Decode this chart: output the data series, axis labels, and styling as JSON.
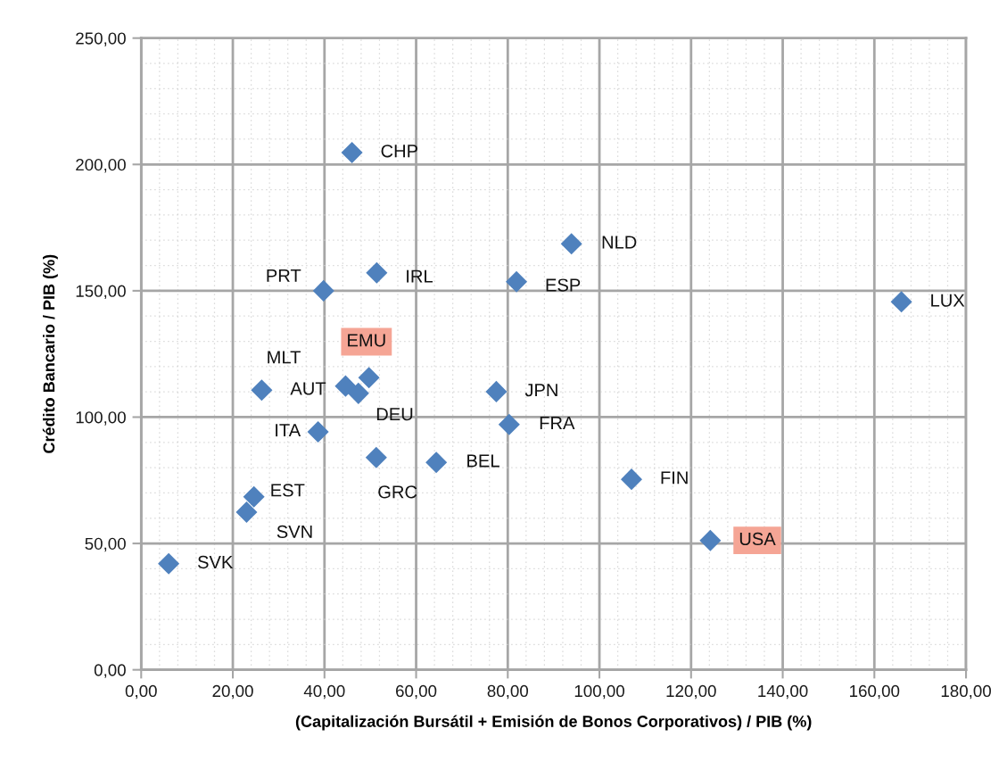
{
  "chart_data": {
    "type": "scatter",
    "xlabel": "(Capitalización Bursátil + Emisión de Bonos Corporativos) / PIB (%)",
    "ylabel": "Crédito Bancario / PIB (%)",
    "series": [
      {
        "color": "#4f81bd",
        "x": [
          46.0,
          93.9,
          51.4,
          81.9,
          39.8,
          165.9,
          49.7,
          44.6,
          26.3,
          77.5,
          47.4,
          80.3,
          38.6,
          51.3,
          64.4,
          107.0,
          24.6,
          23.0,
          124.2,
          6.0
        ],
        "values": [
          204.7,
          168.6,
          157.1,
          153.6,
          150.0,
          145.6,
          115.6,
          112.3,
          110.7,
          110.1,
          109.4,
          97.1,
          94.2,
          84.0,
          82.1,
          75.4,
          68.5,
          62.4,
          51.2,
          42.0
        ]
      }
    ],
    "marker": "diamond",
    "xlim": [
      0,
      180
    ],
    "ylim": [
      0,
      250
    ],
    "xticks": [
      {
        "value": 0,
        "label": "0,00"
      },
      {
        "value": 20,
        "label": "20,00"
      },
      {
        "value": 40,
        "label": "40,00"
      },
      {
        "value": 60,
        "label": "60,00"
      },
      {
        "value": 80,
        "label": "80,00"
      },
      {
        "value": 100,
        "label": "100,00"
      },
      {
        "value": 120,
        "label": "120,00"
      },
      {
        "value": 140,
        "label": "140,00"
      },
      {
        "value": 160,
        "label": "160,00"
      },
      {
        "value": 180,
        "label": "180,00"
      }
    ],
    "yticks": [
      {
        "value": 0,
        "label": "0,00"
      },
      {
        "value": 50,
        "label": "50,00"
      },
      {
        "value": 100,
        "label": "100,00"
      },
      {
        "value": 150,
        "label": "150,00"
      },
      {
        "value": 200,
        "label": "200,00"
      },
      {
        "value": 250,
        "label": "250,00"
      }
    ],
    "grid": true,
    "annotations": [
      {
        "text": "CHP",
        "x": 46.0,
        "y": 204.7
      },
      {
        "text": "NLD",
        "x": 93.9,
        "y": 168.6
      },
      {
        "text": "IRL",
        "x": 51.4,
        "y": 157.1
      },
      {
        "text": "ESP",
        "x": 81.9,
        "y": 153.6
      },
      {
        "text": "PRT",
        "x": 39.8,
        "y": 150.0
      },
      {
        "text": "LUX",
        "x": 165.9,
        "y": 145.6
      },
      {
        "text": "EMU",
        "x": 49.7,
        "y": 115.6
      },
      {
        "text": "MLT",
        "x": 44.6,
        "y": 112.3
      },
      {
        "text": "AUT",
        "x": 26.3,
        "y": 110.7
      },
      {
        "text": "JPN",
        "x": 77.5,
        "y": 110.1
      },
      {
        "text": "DEU",
        "x": 47.4,
        "y": 109.4
      },
      {
        "text": "FRA",
        "x": 80.3,
        "y": 97.1
      },
      {
        "text": "ITA",
        "x": 38.6,
        "y": 94.2
      },
      {
        "text": "GRC",
        "x": 51.3,
        "y": 84.0
      },
      {
        "text": "BEL",
        "x": 64.4,
        "y": 82.1
      },
      {
        "text": "FIN",
        "x": 107.0,
        "y": 75.4
      },
      {
        "text": "EST",
        "x": 24.6,
        "y": 68.5
      },
      {
        "text": "SVN",
        "x": 23.0,
        "y": 62.4
      },
      {
        "text": "USA",
        "x": 124.2,
        "y": 51.2
      },
      {
        "text": "SVK",
        "x": 6.0,
        "y": 42.0
      }
    ]
  }
}
